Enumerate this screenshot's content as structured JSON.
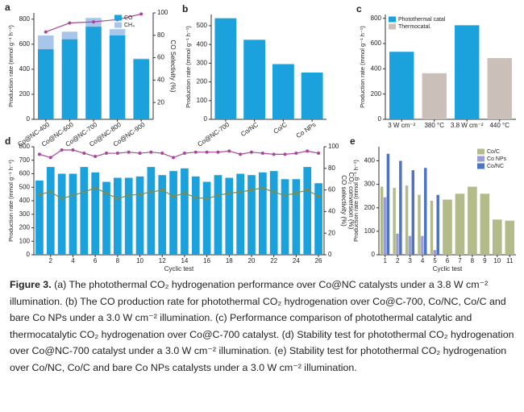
{
  "chart_data": [
    {
      "panel": "a",
      "type": "bar",
      "stacked": true,
      "categories": [
        "Co@NC-400",
        "Co@NC-600",
        "Co@NC-700",
        "Co@NC-800",
        "Co@NC-900"
      ],
      "series": [
        {
          "name": "CO",
          "color": "#1ba1dc",
          "values": [
            560,
            640,
            740,
            670,
            480
          ]
        },
        {
          "name": "CH₄",
          "color": "#a8c6ea",
          "values": [
            110,
            60,
            70,
            50,
            5
          ]
        },
        {
          "type": "line",
          "axis": "y2",
          "color": "#a8479a",
          "values": [
            83,
            91,
            92,
            94,
            99
          ]
        }
      ],
      "ylabel": "Production rate (mmol g⁻¹ h⁻¹)",
      "y2label": [
        "CO Selectivity (%)"
      ],
      "ylim": [
        0,
        850
      ],
      "yticks": [
        0,
        200,
        400,
        600,
        800
      ],
      "y2lim": [
        5,
        100
      ],
      "y2ticks": [
        20,
        40,
        60,
        80,
        100
      ],
      "legend": "upper right"
    },
    {
      "panel": "b",
      "type": "bar",
      "categories": [
        "Co@NC-700",
        "Co/NC",
        "Co/C",
        "Co NPs"
      ],
      "series": [
        {
          "color": "#1ba1dc",
          "values": [
            540,
            425,
            295,
            250
          ]
        }
      ],
      "ylabel": "Production rate (mmol g⁻¹ h⁻¹)",
      "ylim": [
        0,
        560
      ],
      "yticks": [
        0,
        100,
        200,
        300,
        400,
        500
      ]
    },
    {
      "panel": "c",
      "type": "bar",
      "categories": [
        "3 W cm⁻²",
        "380 °C",
        "3.8 W cm⁻²",
        "440 °C"
      ],
      "series": [
        {
          "name": "Photothermal catal",
          "color": "#1ba1dc",
          "values": [
            535,
            null,
            745,
            null
          ]
        },
        {
          "name": "Thermocatal.",
          "color": "#cbbfb9",
          "values": [
            null,
            365,
            null,
            485
          ]
        }
      ],
      "ylabel": "Production rate (mmol g⁻¹ h⁻¹)",
      "ylim": [
        0,
        830
      ],
      "yticks": [
        0,
        200,
        400,
        600,
        800
      ],
      "legend": "upper left"
    },
    {
      "panel": "d",
      "type": "bar",
      "categories": [
        null,
        2,
        null,
        4,
        null,
        6,
        null,
        8,
        null,
        10,
        null,
        12,
        null,
        14,
        null,
        16,
        null,
        18,
        null,
        20,
        null,
        22,
        null,
        24,
        null,
        26
      ],
      "series": [
        {
          "color": "#1ba1dc",
          "values": [
            550,
            650,
            600,
            600,
            650,
            610,
            540,
            570,
            570,
            580,
            650,
            590,
            620,
            640,
            580,
            540,
            590,
            570,
            600,
            590,
            610,
            620,
            560,
            560,
            650,
            530
          ]
        },
        {
          "type": "line",
          "axis": "y2",
          "color": "#a8479a",
          "values": [
            93,
            90,
            97,
            97,
            94,
            91,
            94,
            94,
            95,
            94,
            95,
            94,
            90,
            94,
            95,
            95,
            95,
            96,
            93,
            95,
            94,
            93,
            93,
            94,
            96,
            94
          ]
        },
        {
          "type": "line",
          "axis": "y2",
          "color": "#7c8c50",
          "values": [
            56,
            58,
            52,
            55,
            58,
            62,
            57,
            52,
            55,
            56,
            58,
            60,
            54,
            57,
            53,
            52,
            55,
            57,
            58,
            60,
            62,
            58,
            55,
            57,
            60,
            54
          ]
        }
      ],
      "ylabel": "Production rate (mmol g⁻¹ h⁻¹)",
      "y2label": [
        "CO selectivity (%)",
        "CO₂ conversion (%)"
      ],
      "xlabel": "Cyclic test",
      "ylim": [
        0,
        800
      ],
      "yticks": [
        0,
        100,
        200,
        300,
        400,
        500,
        600,
        700,
        800
      ],
      "y2lim": [
        0,
        100
      ],
      "y2ticks": [
        0,
        20,
        40,
        60,
        80,
        100
      ]
    },
    {
      "panel": "e",
      "type": "bar",
      "categories": [
        1,
        2,
        3,
        4,
        5,
        6,
        7,
        8,
        9,
        10,
        11
      ],
      "series": [
        {
          "name": "Co/C",
          "color": "#b3bb8a",
          "values": [
            290,
            285,
            295,
            255,
            230,
            235,
            260,
            290,
            260,
            150,
            145
          ]
        },
        {
          "name": "Co NPs",
          "color": "#9a9ed6",
          "values": [
            245,
            90,
            80,
            80,
            20,
            null,
            null,
            null,
            null,
            null,
            null
          ]
        },
        {
          "name": "Co/NC",
          "color": "#4d74c2",
          "values": [
            430,
            400,
            360,
            370,
            255,
            null,
            null,
            null,
            null,
            null,
            null
          ]
        }
      ],
      "ylabel": "Production rate (mmol g⁻¹ h⁻¹)",
      "xlabel": "Cyclic test",
      "ylim": [
        0,
        460
      ],
      "yticks": [
        0,
        100,
        200,
        300,
        400
      ],
      "legend": "upper right"
    }
  ],
  "caption": {
    "label": "Figure 3.",
    "text": "(a) The photothermal CO₂ hydrogenation performance over Co@NC catalysts under a 3.8 W cm⁻² illumination. (b) The CO production rate for photothermal CO₂ hydrogenation over Co@C-700, Co/NC, Co/C and bare Co NPs under a 3.0 W cm⁻² illumination. (c) Performance comparison of photothermal catalytic and thermocatalytic CO₂ hydrogenation over Co@C-700 catalyst. (d) Stability test for photothermal CO₂ hydrogenation over Co@NC-700 catalyst under a 3.0 W cm⁻² illumination. (e) Stability test for photothermal CO₂ hydrogenation over Co/NC, Co/C and bare Co NPs catalysts under a 3.0 W cm⁻² illumination."
  }
}
